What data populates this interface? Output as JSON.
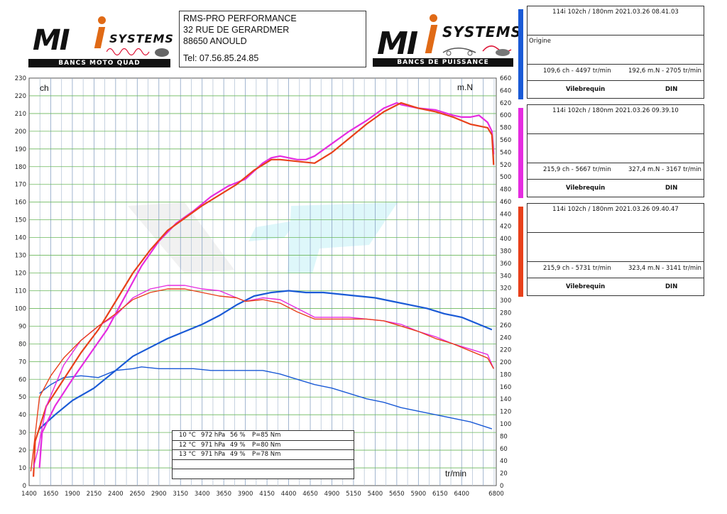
{
  "header": {
    "logo_left": {
      "brand": "MI",
      "systems": "SYSTEMS",
      "subtitle": "BANCS MOTO QUAD"
    },
    "logo_right": {
      "brand": "MI",
      "systems": "SYSTEMS",
      "subtitle": "BANCS DE PUISSANCE"
    },
    "address": {
      "line1": "RMS-PRO PERFORMANCE",
      "line2": "32 RUE DE GERARDMER",
      "line3": "88650 ANOULD",
      "phone": "Tel: 07.56.85.24.85"
    }
  },
  "runs": [
    {
      "color": "#1a5ad6",
      "title": "114i 102ch / 180nm   2021.03.26 08.41.03",
      "note": "Origine",
      "power": "109,6 ch - 4497 tr/min",
      "torque": "192,6 m.N - 2705 tr/min",
      "label_left": "Vilebrequin",
      "label_right": "DIN"
    },
    {
      "color": "#e52ce0",
      "title": "114i 102ch / 180nm   2021.03.26 09.39.10",
      "note": "",
      "power": "215,9 ch - 5667 tr/min",
      "torque": "327,4 m.N - 3167 tr/min",
      "label_left": "Vilebrequin",
      "label_right": "DIN"
    },
    {
      "color": "#e8401a",
      "title": "114i 102ch / 180nm   2021.03.26 09.40.47",
      "note": "",
      "power": "215,9 ch - 5731 tr/min",
      "torque": "323,4 m.N - 3141 tr/min",
      "label_left": "Vilebrequin",
      "label_right": "DIN"
    }
  ],
  "conditions": [
    {
      "temp": "10 °C",
      "pressure": "972 hPa",
      "humidity": "56 %",
      "p": "P=85 Nm"
    },
    {
      "temp": "12 °C",
      "pressure": "971 hPa",
      "humidity": "49 %",
      "p": "P=80 Nm"
    },
    {
      "temp": "13 °C",
      "pressure": "971 hPa",
      "humidity": "49 %",
      "p": "P=78 Nm"
    }
  ],
  "chart_data": {
    "type": "line",
    "xlabel": "tr/min",
    "ylabel_left": "ch",
    "ylabel_right": "m.N",
    "xlim": [
      1400,
      6800
    ],
    "ylim_left": [
      0,
      230
    ],
    "ylim_right": [
      0,
      660
    ],
    "x_ticks": [
      1400,
      1650,
      1900,
      2150,
      2400,
      2650,
      2900,
      3150,
      3400,
      3650,
      3900,
      4150,
      4400,
      4650,
      4900,
      5150,
      5400,
      5650,
      5900,
      6150,
      6400,
      6800
    ],
    "grid": true,
    "series": [
      {
        "color": "#1a5ad6",
        "axis": "left",
        "kind": "power",
        "x": [
          1520,
          1700,
          1900,
          2150,
          2400,
          2600,
          2800,
          3000,
          3200,
          3400,
          3600,
          3800,
          4000,
          4200,
          4400,
          4600,
          4800,
          5000,
          5200,
          5400,
          5600,
          5800,
          6000,
          6200,
          6400,
          6600,
          6750
        ],
        "y": [
          32,
          40,
          48,
          55,
          65,
          73,
          78,
          83,
          87,
          91,
          96,
          102,
          107,
          109,
          110,
          109,
          109,
          108,
          107,
          106,
          104,
          102,
          100,
          97,
          95,
          91,
          88
        ]
      },
      {
        "color": "#1a5ad6",
        "axis": "left",
        "kind": "torque",
        "x": [
          1520,
          1650,
          1800,
          2000,
          2200,
          2400,
          2600,
          2700,
          2900,
          3100,
          3300,
          3500,
          3700,
          3900,
          4100,
          4300,
          4500,
          4700,
          4900,
          5100,
          5300,
          5500,
          5700,
          5900,
          6100,
          6300,
          6500,
          6750
        ],
        "y": [
          52,
          57,
          61,
          62,
          61,
          65,
          66,
          67,
          66,
          66,
          66,
          65,
          65,
          65,
          65,
          63,
          60,
          57,
          55,
          52,
          49,
          47,
          44,
          42,
          40,
          38,
          36,
          32
        ]
      },
      {
        "color": "#e52ce0",
        "axis": "left",
        "kind": "power",
        "x": [
          1520,
          1550,
          1700,
          1900,
          2100,
          2300,
          2500,
          2700,
          2900,
          3100,
          3300,
          3500,
          3700,
          3900,
          4100,
          4200,
          4300,
          4500,
          4600,
          4700,
          4900,
          5100,
          5300,
          5500,
          5650,
          5700,
          5900,
          6100,
          6300,
          6400,
          6500,
          6600,
          6700,
          6750,
          6770
        ],
        "y": [
          10,
          30,
          45,
          60,
          74,
          88,
          106,
          124,
          138,
          148,
          155,
          163,
          169,
          173,
          182,
          185,
          186,
          184,
          184,
          186,
          193,
          200,
          206,
          213,
          216,
          215,
          213,
          212,
          209,
          208,
          208,
          209,
          205,
          200,
          187
        ]
      },
      {
        "color": "#e8401a",
        "axis": "left",
        "kind": "power",
        "x": [
          1450,
          1470,
          1600,
          1800,
          2000,
          2200,
          2400,
          2600,
          2800,
          3000,
          3200,
          3400,
          3600,
          3800,
          4000,
          4200,
          4300,
          4500,
          4700,
          4900,
          5100,
          5300,
          5500,
          5700,
          5900,
          6100,
          6300,
          6500,
          6700,
          6750,
          6770
        ],
        "y": [
          5,
          25,
          45,
          60,
          75,
          88,
          104,
          120,
          133,
          144,
          151,
          158,
          164,
          170,
          178,
          184,
          184,
          183,
          182,
          188,
          196,
          204,
          211,
          216,
          213,
          211,
          208,
          204,
          202,
          198,
          181
        ]
      },
      {
        "color": "#e52ce0",
        "axis": "left",
        "kind": "torque",
        "x": [
          1450,
          1500,
          1600,
          1800,
          2000,
          2200,
          2400,
          2600,
          2800,
          3000,
          3200,
          3400,
          3600,
          3800,
          3900,
          4100,
          4300,
          4500,
          4700,
          4900,
          5100,
          5300,
          5500,
          5700,
          5900,
          6100,
          6300,
          6500,
          6700,
          6770
        ],
        "y": [
          10,
          20,
          45,
          68,
          82,
          90,
          96,
          106,
          111,
          113,
          113,
          111,
          110,
          106,
          104,
          106,
          105,
          100,
          95,
          95,
          95,
          94,
          93,
          91,
          87,
          84,
          80,
          77,
          74,
          66
        ]
      },
      {
        "color": "#e8401a",
        "axis": "left",
        "kind": "torque",
        "x": [
          1420,
          1450,
          1520,
          1650,
          1800,
          2000,
          2200,
          2400,
          2600,
          2800,
          3000,
          3200,
          3400,
          3600,
          3800,
          3900,
          4100,
          4300,
          4500,
          4700,
          4900,
          5100,
          5300,
          5500,
          5700,
          5900,
          6100,
          6300,
          6500,
          6700,
          6770
        ],
        "y": [
          8,
          20,
          50,
          62,
          72,
          82,
          90,
          97,
          105,
          109,
          111,
          111,
          109,
          107,
          106,
          104,
          105,
          103,
          98,
          94,
          94,
          94,
          94,
          93,
          90,
          87,
          83,
          80,
          76,
          72,
          66
        ]
      }
    ]
  }
}
